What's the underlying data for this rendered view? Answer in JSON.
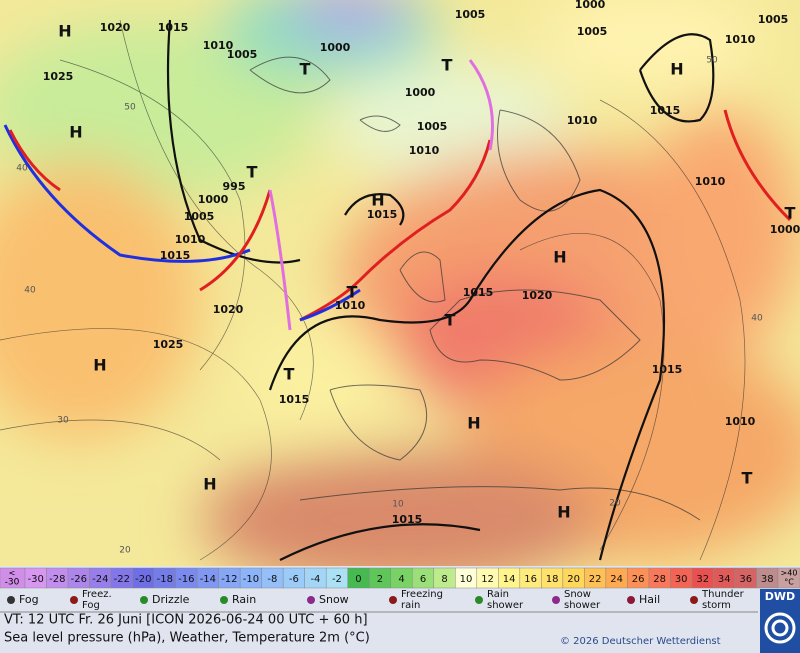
{
  "map": {
    "labels": [
      "H",
      "1020",
      "1015",
      "1025",
      "H",
      "1010",
      "1005",
      "1000",
      "T",
      "1005",
      "1000",
      "1005",
      "1005",
      "1010",
      "H",
      "T",
      "1000",
      "1005",
      "1010",
      "1015",
      "1010",
      "995",
      "T",
      "1000",
      "1005",
      "1010",
      "1015",
      "H",
      "1015",
      "1020",
      "1025",
      "T",
      "1010",
      "1015",
      "1020",
      "T",
      "H",
      "T",
      "1015",
      "H",
      "H",
      "1015",
      "1010",
      "T",
      "H",
      "H",
      "1015",
      "1010",
      "1000",
      "T"
    ],
    "grid_labels": [
      "50",
      "40",
      "40",
      "30",
      "20",
      "10",
      "20",
      "40",
      "50"
    ]
  },
  "legend": {
    "temperature_scale": {
      "below": "<",
      "below_value": "-30",
      "above": ">40",
      "unit": "°C",
      "values": [
        "-30",
        "-28",
        "-26",
        "-24",
        "-22",
        "-20",
        "-18",
        "-16",
        "-14",
        "-12",
        "-10",
        "-8",
        "-6",
        "-4",
        "-2",
        "0",
        "2",
        "4",
        "6",
        "8",
        "10",
        "12",
        "14",
        "16",
        "18",
        "20",
        "22",
        "24",
        "26",
        "28",
        "30",
        "32",
        "34",
        "36",
        "38"
      ]
    },
    "weather": [
      "Fog",
      "Freez. Fog",
      "Drizzle",
      "Rain",
      "Snow",
      "Freezing rain",
      "Rain shower",
      "Snow shower",
      "Hail",
      "Thunder storm"
    ]
  },
  "footer": {
    "valid_time": "VT: 12 UTC Fr.  26 Juni [ICON 2026-06-24  00 UTC + 60 h]",
    "description": "Sea level pressure (hPa), Weather, Temperature 2m (°C)",
    "copyright": "© 2026 Deutscher Wetterdienst",
    "logo": "DWD"
  }
}
